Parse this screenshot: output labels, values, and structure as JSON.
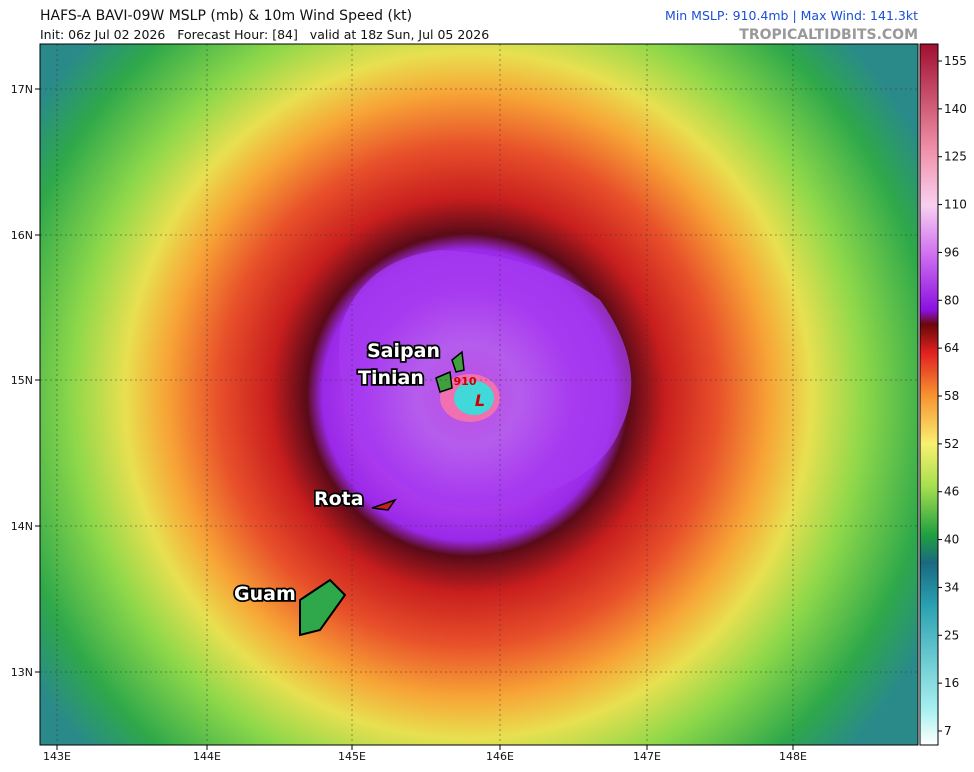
{
  "header": {
    "title": "HAFS-A BAVI-09W MSLP (mb) & 10m Wind Speed (kt)",
    "subtitle": "Init: 06z Jul 02 2026   Forecast Hour: [84]   valid at 18z Sun, Jul 05 2026",
    "stats": "Min MSLP: 910.4mb | Max Wind: 141.3kt",
    "credit": "TROPICALTIDBITS.COM"
  },
  "map": {
    "lon_labels": [
      "143E",
      "144E",
      "145E",
      "146E",
      "147E",
      "148E"
    ],
    "lat_labels": [
      "17N",
      "16N",
      "15N",
      "14N",
      "13N"
    ],
    "places": [
      "Saipan",
      "Tinian",
      "Rota",
      "Guam"
    ],
    "center_pressure": "910",
    "center_symbol": "L"
  },
  "colorbar": {
    "ticks": [
      155,
      140,
      125,
      110,
      96,
      80,
      64,
      58,
      52,
      46,
      40,
      34,
      25,
      16,
      7
    ]
  }
}
